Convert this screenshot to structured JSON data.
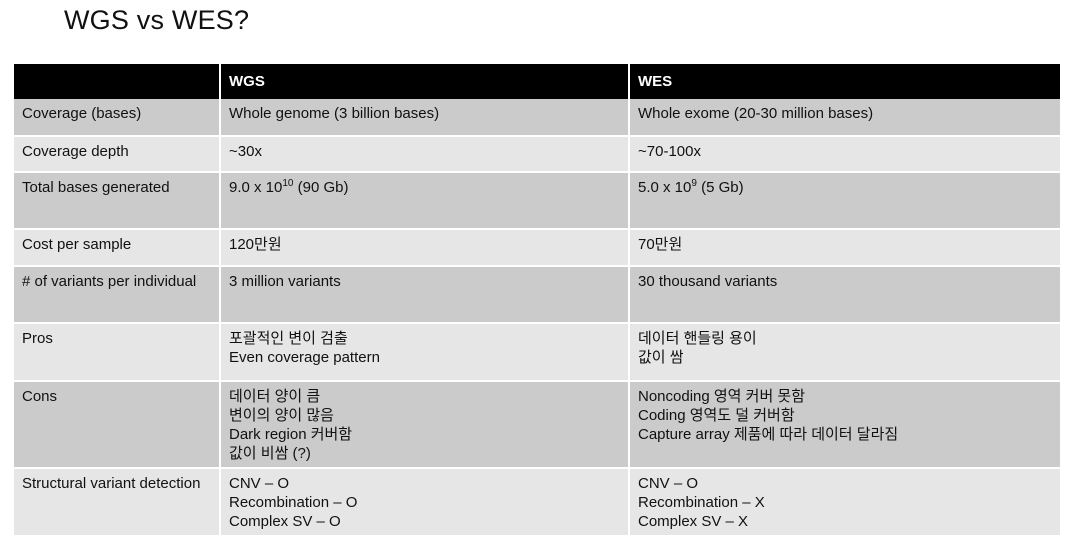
{
  "title": "WGS vs WES?",
  "table": {
    "headers": [
      "",
      "WGS",
      "WES"
    ],
    "rows": [
      {
        "label": "Coverage (bases)",
        "wgs": [
          "Whole genome (3 billion bases)"
        ],
        "wes": [
          "Whole exome (20-30 million bases)"
        ]
      },
      {
        "label": "Coverage depth",
        "wgs": [
          "~30x"
        ],
        "wes": [
          "~70-100x"
        ]
      },
      {
        "label": "Total bases generated",
        "wgs_sci": {
          "mantissa": "9.0 x 10",
          "exponent": "10",
          "suffix": " (90 Gb)"
        },
        "wes_sci": {
          "mantissa": "5.0 x 10",
          "exponent": "9",
          "suffix": " (5 Gb)"
        }
      },
      {
        "label": "Cost per sample",
        "wgs": [
          "120만원"
        ],
        "wes": [
          "70만원"
        ]
      },
      {
        "label": "# of variants per individual",
        "wgs": [
          "3 million variants"
        ],
        "wes": [
          "30 thousand variants"
        ]
      },
      {
        "label": "Pros",
        "wgs": [
          "포괄적인 변이 검출",
          "Even coverage pattern"
        ],
        "wes": [
          "데이터 핸들링 용이",
          "값이 쌈"
        ]
      },
      {
        "label": "Cons",
        "wgs": [
          "데이터 양이 큼",
          "변이의 양이 많음",
          "Dark region 커버함",
          "값이 비쌈 (?)"
        ],
        "wes": [
          "Noncoding 영역 커버 못함",
          "Coding 영역도 덜 커버함",
          "Capture array 제품에 따라 데이터 달라짐"
        ]
      },
      {
        "label": "Structural variant detection",
        "wgs": [
          "CNV – O",
          "Recombination – O",
          "Complex SV – O"
        ],
        "wes": [
          "CNV – O",
          "Recombination – X",
          "Complex SV – X"
        ]
      }
    ]
  }
}
